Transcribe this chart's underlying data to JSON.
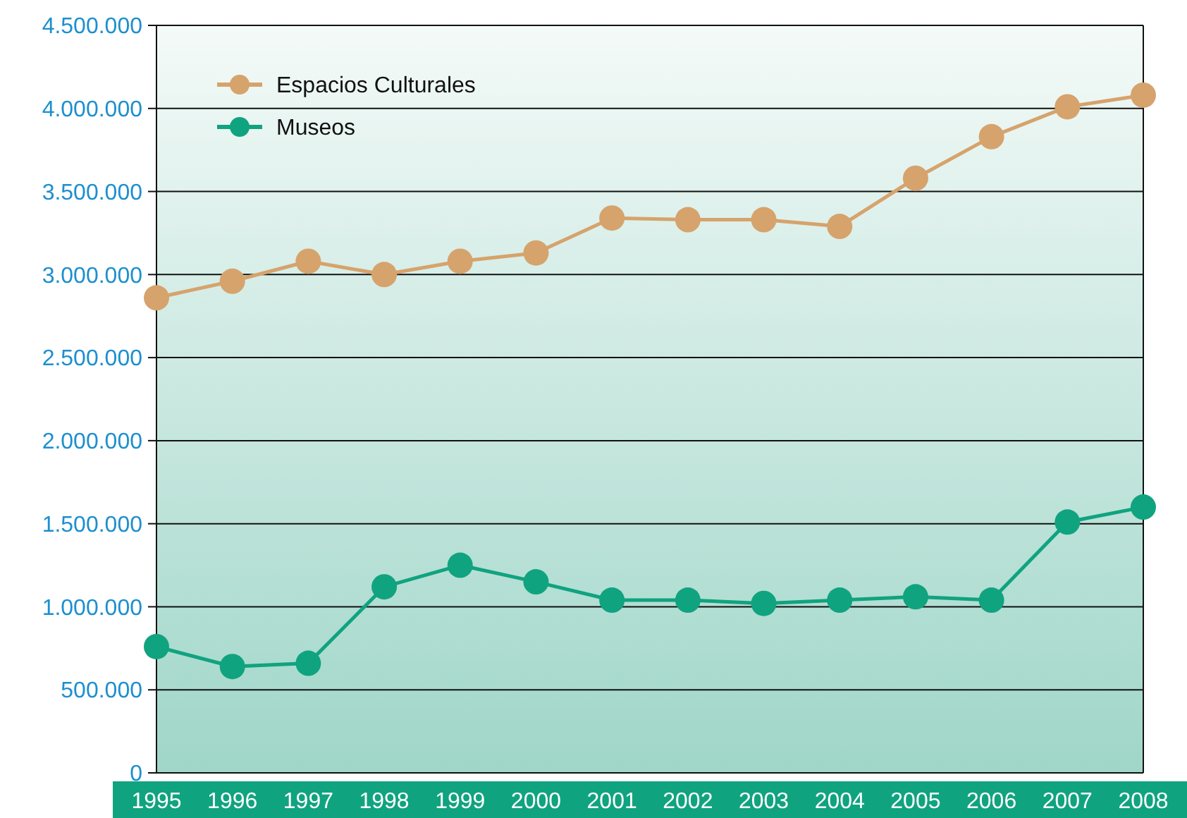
{
  "chart_data": {
    "type": "line",
    "categories": [
      "1995",
      "1996",
      "1997",
      "1998",
      "1999",
      "2000",
      "2001",
      "2002",
      "2003",
      "2004",
      "2005",
      "2006",
      "2007",
      "2008"
    ],
    "series": [
      {
        "name": "Espacios Culturales",
        "color": "#d6a36c",
        "values": [
          2860000,
          2960000,
          3080000,
          3000000,
          3080000,
          3130000,
          3340000,
          3330000,
          3330000,
          3290000,
          3580000,
          3830000,
          4010000,
          4080000
        ]
      },
      {
        "name": "Museos",
        "color": "#10a37f",
        "values": [
          760000,
          640000,
          660000,
          1120000,
          1250000,
          1150000,
          1040000,
          1040000,
          1020000,
          1040000,
          1060000,
          1040000,
          1510000,
          1600000
        ]
      }
    ],
    "ylim": [
      0,
      4500000
    ],
    "yticks": [
      {
        "value": 0,
        "label": "0"
      },
      {
        "value": 500000,
        "label": "500.000"
      },
      {
        "value": 1000000,
        "label": "1.000.000"
      },
      {
        "value": 1500000,
        "label": "1.500.000"
      },
      {
        "value": 2000000,
        "label": "2.000.000"
      },
      {
        "value": 2500000,
        "label": "2.500.000"
      },
      {
        "value": 3000000,
        "label": "3.000.000"
      },
      {
        "value": 3500000,
        "label": "3.500.000"
      },
      {
        "value": 4000000,
        "label": "4.000.000"
      },
      {
        "value": 4500000,
        "label": "4.500.000"
      }
    ],
    "grid": "y",
    "legend": "top left",
    "marker": "circle",
    "line_style": "solid"
  }
}
